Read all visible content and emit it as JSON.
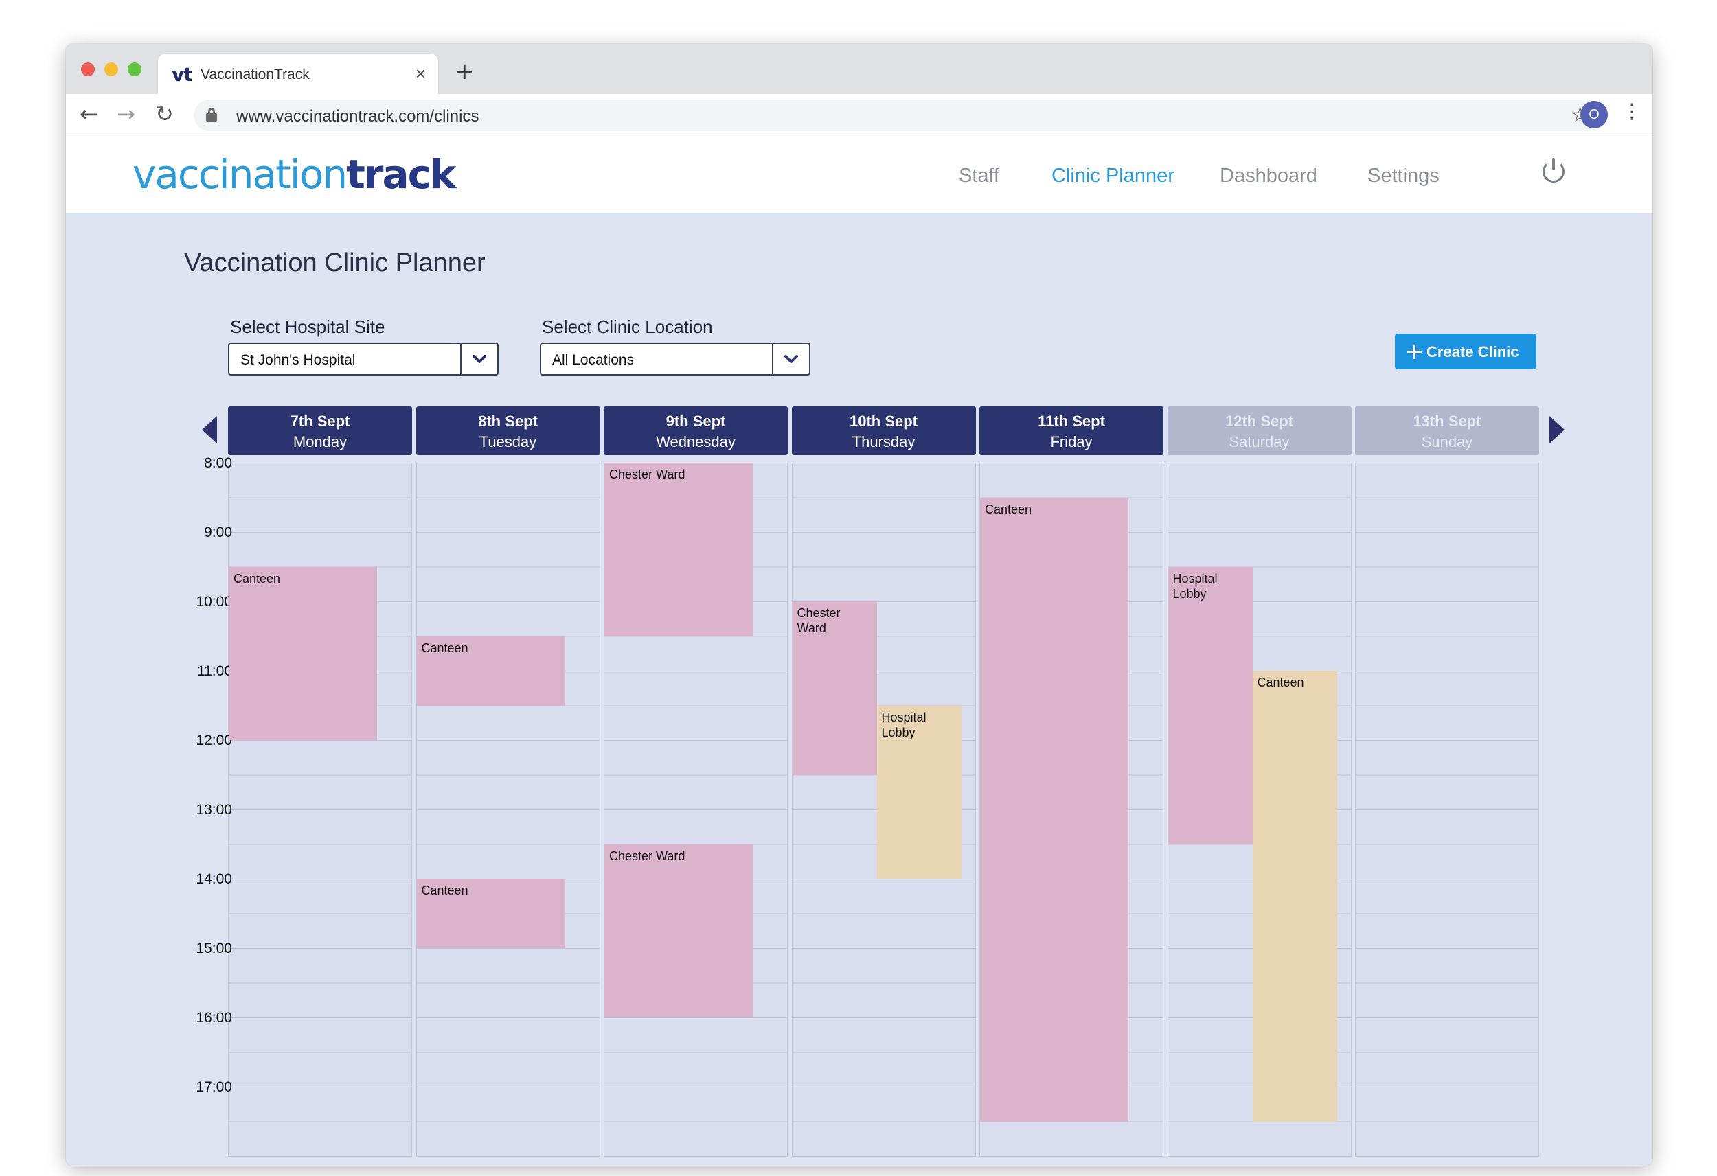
{
  "browser": {
    "tab_title": "VaccinationTrack",
    "tab_logo": "vt",
    "tab_close": "×",
    "new_tab": "+",
    "url": "www.vaccinationtrack.com/clinics",
    "profile_initial": "O",
    "nav_icons": {
      "back": "back-arrow-icon",
      "forward": "forward-arrow-icon",
      "reload": "reload-icon",
      "bookmark": "star-icon",
      "menu": "kebab-menu-icon"
    }
  },
  "app": {
    "logo_part1": "vaccination",
    "logo_part2": "track",
    "nav": {
      "staff": "Staff",
      "clinic_planner": "Clinic Planner",
      "dashboard": "Dashboard",
      "settings": "Settings"
    },
    "active_nav": "clinic_planner",
    "colors": {
      "brand_light": "#2a9ad8",
      "brand_dark": "#283a85",
      "header_navy": "#2b346e",
      "weekend_header": "#b3b7cd",
      "event_pink": "#dbb3ca",
      "event_peach": "#e9d4b3",
      "button_blue": "#1c93e0"
    }
  },
  "page": {
    "title": "Vaccination Clinic Planner",
    "site_label": "Select Hospital Site",
    "site_value": "St John's Hospital",
    "location_label": "Select Clinic Location",
    "location_value": "All Locations",
    "create_button": "Create Clinic",
    "create_icon": "+"
  },
  "calendar": {
    "days": [
      {
        "date": "7th Sept",
        "name": "Monday",
        "weekend": false
      },
      {
        "date": "8th Sept",
        "name": "Tuesday",
        "weekend": false
      },
      {
        "date": "9th Sept",
        "name": "Wednesday",
        "weekend": false
      },
      {
        "date": "10th Sept",
        "name": "Thursday",
        "weekend": false
      },
      {
        "date": "11th Sept",
        "name": "Friday",
        "weekend": false
      },
      {
        "date": "12th Sept",
        "name": "Saturday",
        "weekend": true
      },
      {
        "date": "13th Sept",
        "name": "Sunday",
        "weekend": true
      }
    ],
    "times": [
      "8:00",
      "9:00",
      "10:00",
      "11:00",
      "12:00",
      "13:00",
      "14:00",
      "15:00",
      "16:00",
      "17:00"
    ],
    "events": [
      {
        "day": 0,
        "start": 9.5,
        "end": 12.0,
        "label": "Canteen",
        "color": "pink"
      },
      {
        "day": 1,
        "start": 10.5,
        "end": 11.5,
        "label": "Canteen",
        "color": "pink"
      },
      {
        "day": 1,
        "start": 14.0,
        "end": 15.0,
        "label": "Canteen",
        "color": "pink"
      },
      {
        "day": 2,
        "start": 8.0,
        "end": 10.5,
        "label": "Chester Ward",
        "color": "pink"
      },
      {
        "day": 2,
        "start": 13.5,
        "end": 16.0,
        "label": "Chester Ward",
        "color": "pink"
      },
      {
        "day": 3,
        "start": 10.0,
        "end": 12.5,
        "label": "Chester\nWard",
        "color": "pink"
      },
      {
        "day": 3,
        "start": 11.5,
        "end": 14.0,
        "label": "Hospital\nLobby",
        "color": "peach",
        "offset": 1
      },
      {
        "day": 4,
        "start": 8.5,
        "end": 17.5,
        "label": "Canteen",
        "color": "pink"
      },
      {
        "day": 5,
        "start": 9.5,
        "end": 13.5,
        "label": "Hospital\nLobby",
        "color": "pink"
      },
      {
        "day": 5,
        "start": 11.0,
        "end": 17.5,
        "label": "Canteen",
        "color": "peach",
        "offset": 1
      }
    ]
  }
}
